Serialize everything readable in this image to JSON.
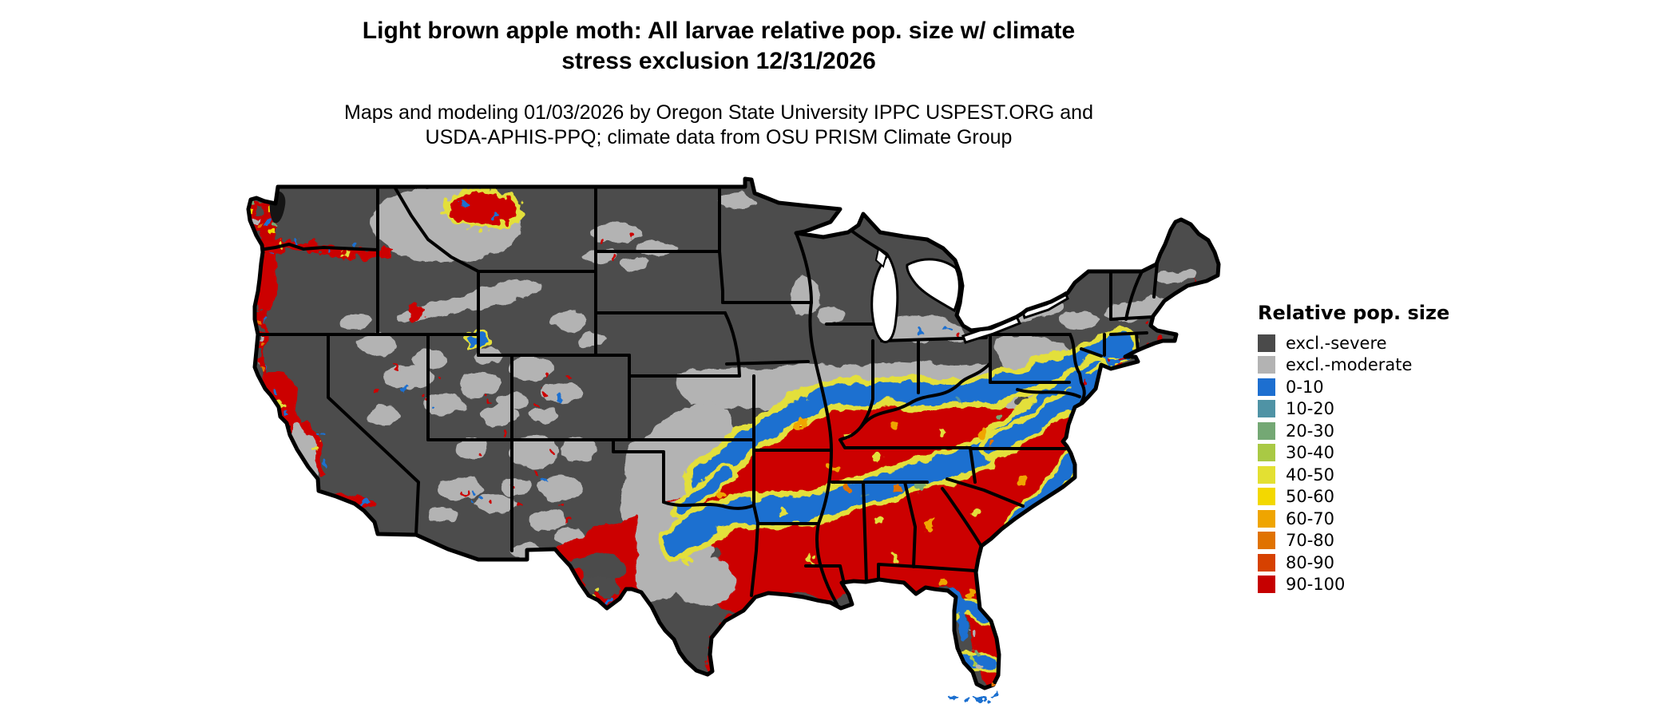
{
  "title": {
    "line1": "Light brown apple moth: All larvae relative pop. size w/ climate",
    "line2": "stress exclusion 12/31/2026"
  },
  "subtitle": {
    "line1": "Maps and modeling 01/03/2026 by Oregon State University IPPC USPEST.ORG and",
    "line2": "USDA-APHIS-PPQ; climate data from OSU PRISM Climate Group"
  },
  "legend": {
    "title": "Relative pop. size",
    "entries": [
      {
        "label": "excl.-severe",
        "color": "#4a4a4a"
      },
      {
        "label": "excl.-moderate",
        "color": "#b3b3b3"
      },
      {
        "label": "0-10",
        "color": "#1d6fd0"
      },
      {
        "label": "10-20",
        "color": "#4f93a5"
      },
      {
        "label": "20-30",
        "color": "#74a874"
      },
      {
        "label": "30-40",
        "color": "#a9c944"
      },
      {
        "label": "40-50",
        "color": "#e3e032"
      },
      {
        "label": "50-60",
        "color": "#f3d800"
      },
      {
        "label": "60-70",
        "color": "#efa500"
      },
      {
        "label": "70-80",
        "color": "#e07200"
      },
      {
        "label": "80-90",
        "color": "#d64100"
      },
      {
        "label": "90-100",
        "color": "#c60000"
      }
    ]
  },
  "map_colors": {
    "background": "#ffffff",
    "excluded_severe": "#4c4c4c",
    "excluded_moderate": "#b3b3b3",
    "low_pop_blue": "#1d6fd0",
    "high_pop_red": "#cc0000",
    "border": "#000000",
    "water": "#ffffff"
  }
}
